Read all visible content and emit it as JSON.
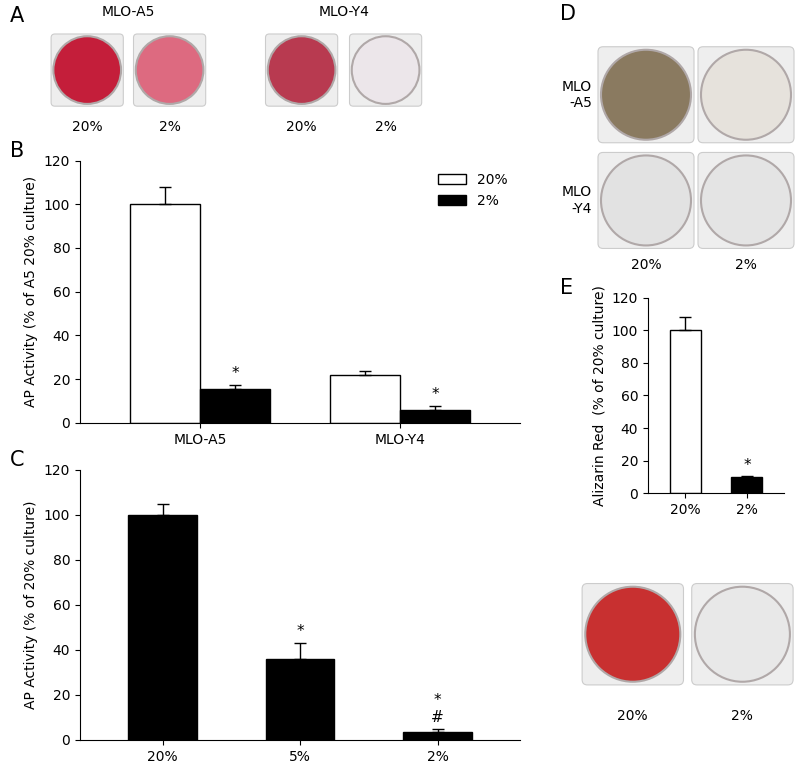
{
  "chart_data": [
    {
      "panel_label": "B",
      "type": "bar",
      "y_label": "AP Activity (% of A5 20% culture)",
      "categories": [
        "MLO-A5",
        "MLO-Y4"
      ],
      "series": [
        {
          "name": "20%",
          "color": "#ffffff",
          "values": [
            100,
            22
          ],
          "errors": [
            8,
            1.5
          ]
        },
        {
          "name": "2%",
          "color": "#000000",
          "values": [
            15.5,
            6
          ],
          "errors": [
            2,
            1.5
          ]
        }
      ],
      "ylim": [
        0,
        120
      ],
      "yticks": [
        0,
        20,
        40,
        60,
        80,
        100,
        120
      ],
      "legend": "upper right",
      "annotations": [
        {
          "category": "MLO-A5",
          "series": "2%",
          "text": "*"
        },
        {
          "category": "MLO-Y4",
          "series": "2%",
          "text": "*"
        }
      ]
    },
    {
      "panel_label": "C",
      "type": "bar",
      "y_label": "AP Activity (% of 20% culture)",
      "categories": [
        "20%",
        "5%",
        "2%"
      ],
      "series": [
        {
          "color": "#000000",
          "values": [
            100,
            36,
            3.5
          ],
          "errors": [
            5,
            7,
            1.5
          ]
        }
      ],
      "ylim": [
        0,
        120
      ],
      "yticks": [
        0,
        20,
        40,
        60,
        80,
        100,
        120
      ],
      "annotations": [
        {
          "category": "5%",
          "text": "*"
        },
        {
          "category": "2%",
          "text": "*"
        },
        {
          "category": "2%",
          "text": "#"
        }
      ]
    },
    {
      "panel_label": "E",
      "type": "bar",
      "y_label": "Alizarin Red  (% of 20% culture)",
      "categories": [
        "20%",
        "2%"
      ],
      "series": [
        {
          "colors": [
            "#ffffff",
            "#000000"
          ],
          "values": [
            100,
            10
          ],
          "errors": [
            8,
            0.8
          ]
        }
      ],
      "ylim": [
        0,
        120
      ],
      "yticks": [
        0,
        20,
        40,
        60,
        80,
        100,
        120
      ],
      "annotations": [
        {
          "category": "2%",
          "text": "*"
        }
      ]
    }
  ],
  "images": {
    "A": {
      "panel_label": "A",
      "groups": [
        {
          "title": "MLO-A5",
          "wells": [
            "20%",
            "2%"
          ]
        },
        {
          "title": "MLO-Y4",
          "wells": [
            "20%",
            "2%"
          ]
        }
      ]
    },
    "D": {
      "panel_label": "D",
      "rows": [
        "MLO\n-A5",
        "MLO\n-Y4"
      ],
      "columns": [
        "20%",
        "2%"
      ]
    },
    "E": {
      "wells": [
        "20%",
        "2%"
      ]
    }
  }
}
